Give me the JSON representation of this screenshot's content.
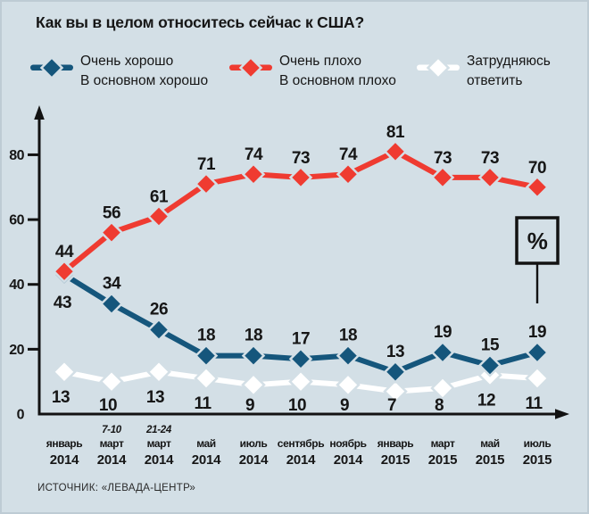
{
  "title": "Как вы в целом относитесь сейчас к США?",
  "source": "ИСТОЧНИК: «ЛЕВАДА-ЦЕНТР»",
  "percent_box_label": "%",
  "colors": {
    "background": "#d3dfe6",
    "good": "#15567c",
    "bad": "#ef3b31",
    "undecided": "#ffffff",
    "axis": "#121212",
    "text": "#161616"
  },
  "legend": [
    {
      "label": "Очень хорошо\nВ основном хорошо",
      "color": "#15567c"
    },
    {
      "label": "Очень плохо\nВ основном плохо",
      "color": "#ef3b31"
    },
    {
      "label": "Затрудняюсь\nответить",
      "color": "#ffffff"
    }
  ],
  "chart_data": {
    "type": "line",
    "x_categories": [
      {
        "prefix": "",
        "month": "январь",
        "year": "2014"
      },
      {
        "prefix": "7-10",
        "month": "март",
        "year": "2014"
      },
      {
        "prefix": "21-24",
        "month": "март",
        "year": "2014"
      },
      {
        "prefix": "",
        "month": "май",
        "year": "2014"
      },
      {
        "prefix": "",
        "month": "июль",
        "year": "2014"
      },
      {
        "prefix": "",
        "month": "сентябрь",
        "year": "2014"
      },
      {
        "prefix": "",
        "month": "ноябрь",
        "year": "2014"
      },
      {
        "prefix": "",
        "month": "январь",
        "year": "2015"
      },
      {
        "prefix": "",
        "month": "март",
        "year": "2015"
      },
      {
        "prefix": "",
        "month": "май",
        "year": "2015"
      },
      {
        "prefix": "",
        "month": "июль",
        "year": "2015"
      }
    ],
    "series": [
      {
        "id": "good",
        "name": "Очень хорошо / В основном хорошо",
        "color": "#15567c",
        "values": [
          43,
          34,
          26,
          18,
          18,
          17,
          18,
          13,
          19,
          15,
          19
        ]
      },
      {
        "id": "bad",
        "name": "Очень плохо / В основном плохо",
        "color": "#ef3b31",
        "values": [
          44,
          56,
          61,
          71,
          74,
          73,
          74,
          81,
          73,
          73,
          70
        ]
      },
      {
        "id": "undecided",
        "name": "Затрудняюсь ответить",
        "color": "#ffffff",
        "values": [
          13,
          10,
          13,
          11,
          9,
          10,
          9,
          7,
          8,
          12,
          11
        ]
      }
    ],
    "y_ticks": [
      0,
      20,
      40,
      60,
      80
    ],
    "ylim": [
      0,
      95
    ],
    "unit": "%",
    "grid": false,
    "legend_position": "top"
  }
}
